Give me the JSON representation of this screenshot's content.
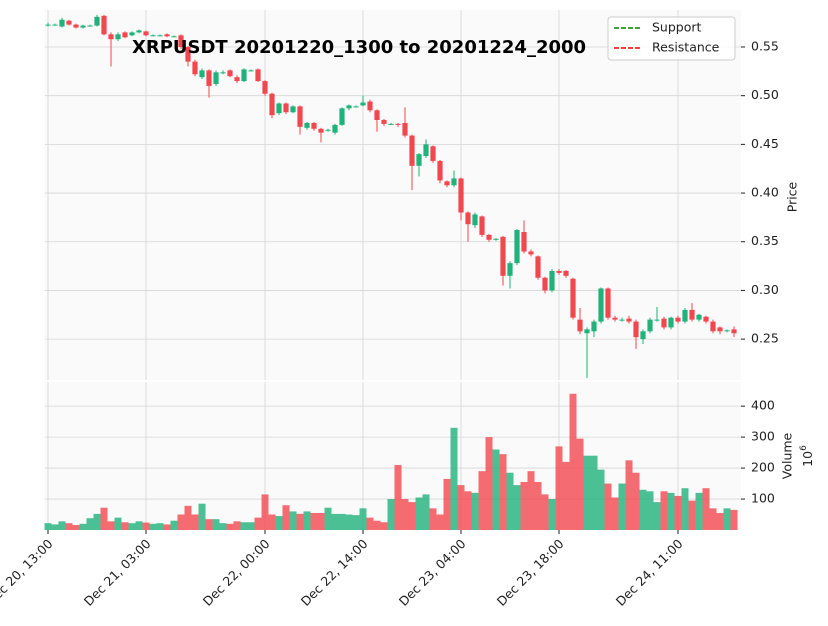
{
  "chart_data": {
    "type": "candlestick",
    "title": "XRPUSDT 20201220_1300 to 20201224_2000",
    "categories": [
      "Dec 20, 13:00",
      null,
      null,
      null,
      null,
      null,
      null,
      null,
      null,
      null,
      null,
      null,
      null,
      null,
      "Dec 21, 03:00",
      null,
      null,
      null,
      null,
      null,
      null,
      null,
      null,
      null,
      null,
      null,
      null,
      null,
      null,
      null,
      null,
      "Dec 22, 00:00",
      null,
      null,
      null,
      null,
      null,
      null,
      null,
      null,
      null,
      null,
      null,
      null,
      null,
      "Dec 22, 14:00",
      null,
      null,
      null,
      null,
      null,
      null,
      null,
      null,
      null,
      null,
      null,
      null,
      null,
      "Dec 23, 04:00",
      null,
      null,
      null,
      null,
      null,
      null,
      null,
      null,
      null,
      null,
      null,
      null,
      null,
      "Dec 23, 18:00",
      null,
      null,
      null,
      null,
      null,
      null,
      null,
      null,
      null,
      null,
      null,
      null,
      null,
      null,
      null,
      null,
      "Dec 24, 11:00",
      null,
      null,
      null,
      null,
      null,
      null,
      null,
      null
    ],
    "open": [
      0.573,
      0.573,
      0.571,
      0.577,
      0.573,
      0.57,
      0.572,
      0.572,
      0.582,
      0.563,
      0.558,
      0.565,
      0.562,
      0.565,
      0.566,
      0.562,
      0.562,
      0.563,
      0.561,
      0.562,
      0.55,
      0.535,
      0.519,
      0.526,
      0.512,
      0.524,
      0.526,
      0.519,
      0.515,
      0.526,
      0.527,
      0.515,
      0.502,
      0.482,
      0.492,
      0.483,
      0.489,
      0.467,
      0.472,
      0.466,
      0.465,
      0.462,
      0.47,
      0.487,
      0.489,
      0.49,
      0.494,
      0.485,
      0.475,
      0.471,
      0.471,
      0.472,
      0.459,
      0.428,
      0.438,
      0.448,
      0.433,
      0.412,
      0.408,
      0.415,
      0.38,
      0.367,
      0.376,
      0.357,
      0.353,
      0.355,
      0.315,
      0.328,
      0.36,
      0.34,
      0.335,
      0.313,
      0.3,
      0.32,
      0.32,
      0.312,
      0.27,
      0.256,
      0.258,
      0.268,
      0.302,
      0.272,
      0.27,
      0.271,
      0.268,
      0.25,
      0.258,
      0.27,
      0.271,
      0.262,
      0.272,
      0.268,
      0.28,
      0.27,
      0.273,
      0.268,
      0.262,
      0.259,
      0.26
    ],
    "high": [
      0.575,
      0.574,
      0.58,
      0.578,
      0.574,
      0.573,
      0.573,
      0.583,
      0.583,
      0.565,
      0.565,
      0.566,
      0.566,
      0.568,
      0.567,
      0.563,
      0.563,
      0.564,
      0.562,
      0.563,
      0.551,
      0.537,
      0.528,
      0.527,
      0.526,
      0.526,
      0.527,
      0.521,
      0.528,
      0.527,
      0.528,
      0.516,
      0.503,
      0.493,
      0.493,
      0.49,
      0.49,
      0.473,
      0.473,
      0.467,
      0.466,
      0.471,
      0.488,
      0.491,
      0.49,
      0.5,
      0.496,
      0.486,
      0.476,
      0.472,
      0.472,
      0.488,
      0.46,
      0.441,
      0.455,
      0.449,
      0.434,
      0.413,
      0.423,
      0.416,
      0.381,
      0.38,
      0.377,
      0.358,
      0.354,
      0.356,
      0.33,
      0.363,
      0.372,
      0.342,
      0.336,
      0.314,
      0.322,
      0.322,
      0.321,
      0.313,
      0.282,
      0.262,
      0.27,
      0.303,
      0.303,
      0.274,
      0.272,
      0.274,
      0.27,
      0.26,
      0.272,
      0.283,
      0.273,
      0.273,
      0.274,
      0.282,
      0.287,
      0.276,
      0.274,
      0.27,
      0.263,
      0.26,
      0.263
    ],
    "low": [
      0.571,
      0.572,
      0.57,
      0.572,
      0.569,
      0.569,
      0.571,
      0.571,
      0.562,
      0.53,
      0.556,
      0.559,
      0.561,
      0.564,
      0.561,
      0.561,
      0.561,
      0.56,
      0.56,
      0.548,
      0.53,
      0.52,
      0.517,
      0.498,
      0.51,
      0.522,
      0.519,
      0.513,
      0.514,
      0.525,
      0.514,
      0.5,
      0.477,
      0.48,
      0.481,
      0.482,
      0.46,
      0.465,
      0.464,
      0.452,
      0.463,
      0.46,
      0.469,
      0.485,
      0.488,
      0.489,
      0.483,
      0.463,
      0.469,
      0.47,
      0.468,
      0.457,
      0.403,
      0.417,
      0.436,
      0.431,
      0.41,
      0.406,
      0.406,
      0.372,
      0.35,
      0.364,
      0.355,
      0.35,
      0.351,
      0.305,
      0.302,
      0.326,
      0.338,
      0.335,
      0.311,
      0.297,
      0.298,
      0.316,
      0.313,
      0.27,
      0.255,
      0.21,
      0.252,
      0.266,
      0.27,
      0.268,
      0.268,
      0.266,
      0.24,
      0.245,
      0.256,
      0.268,
      0.26,
      0.26,
      0.266,
      0.266,
      0.268,
      0.268,
      0.266,
      0.256,
      0.255,
      0.257,
      0.252
    ],
    "close": [
      0.573,
      0.573,
      0.578,
      0.573,
      0.57,
      0.572,
      0.572,
      0.581,
      0.563,
      0.558,
      0.563,
      0.56,
      0.565,
      0.567,
      0.562,
      0.562,
      0.562,
      0.561,
      0.561,
      0.55,
      0.535,
      0.522,
      0.526,
      0.51,
      0.524,
      0.524,
      0.52,
      0.515,
      0.527,
      0.526,
      0.515,
      0.502,
      0.48,
      0.492,
      0.483,
      0.489,
      0.468,
      0.472,
      0.466,
      0.462,
      0.465,
      0.47,
      0.487,
      0.49,
      0.489,
      0.493,
      0.485,
      0.475,
      0.471,
      0.471,
      0.47,
      0.459,
      0.428,
      0.44,
      0.45,
      0.433,
      0.413,
      0.408,
      0.415,
      0.38,
      0.368,
      0.378,
      0.357,
      0.352,
      0.353,
      0.315,
      0.328,
      0.362,
      0.34,
      0.337,
      0.313,
      0.3,
      0.32,
      0.318,
      0.315,
      0.272,
      0.258,
      0.26,
      0.268,
      0.302,
      0.272,
      0.27,
      0.27,
      0.268,
      0.252,
      0.258,
      0.27,
      0.27,
      0.262,
      0.272,
      0.268,
      0.28,
      0.27,
      0.275,
      0.268,
      0.258,
      0.258,
      0.259,
      0.256
    ],
    "up_color": "#1fb27a",
    "down_color": "#f2474f",
    "ylabel": "Price",
    "ylim": [
      0.208,
      0.588
    ],
    "yticks": [
      0.25,
      {
        "value": 0.3,
        "label": "0.30"
      },
      0.35,
      {
        "value": 0.4,
        "label": "0.40"
      },
      0.45,
      {
        "value": 0.5,
        "label": "0.50"
      },
      0.55
    ],
    "grid": true,
    "legend": {
      "loc": "upper right",
      "entries": [
        {
          "name": "Support",
          "color": "#008000",
          "linestyle": "dashed"
        },
        {
          "name": "Resistance",
          "color": "#ff0000",
          "linestyle": "dashed"
        }
      ]
    },
    "volume": {
      "ylabel": "Volume",
      "offset_label": {
        "base": "10",
        "exponent": "6"
      },
      "values": [
        22,
        18,
        28,
        22,
        16,
        20,
        38,
        52,
        72,
        28,
        40,
        25,
        22,
        28,
        24,
        20,
        22,
        18,
        30,
        50,
        78,
        50,
        85,
        35,
        35,
        22,
        20,
        28,
        25,
        25,
        40,
        115,
        50,
        45,
        80,
        60,
        52,
        60,
        55,
        55,
        72,
        52,
        52,
        50,
        48,
        70,
        40,
        30,
        25,
        100,
        210,
        100,
        90,
        105,
        115,
        70,
        50,
        165,
        330,
        145,
        125,
        120,
        190,
        300,
        260,
        245,
        185,
        145,
        155,
        190,
        155,
        115,
        100,
        270,
        220,
        440,
        295,
        240,
        240,
        195,
        150,
        105,
        150,
        225,
        185,
        130,
        125,
        90,
        125,
        120,
        110,
        135,
        95,
        120,
        135,
        70,
        55,
        70,
        65
      ],
      "ylim": [
        0,
        478
      ],
      "yticks": [
        100,
        200,
        300,
        400
      ]
    }
  }
}
